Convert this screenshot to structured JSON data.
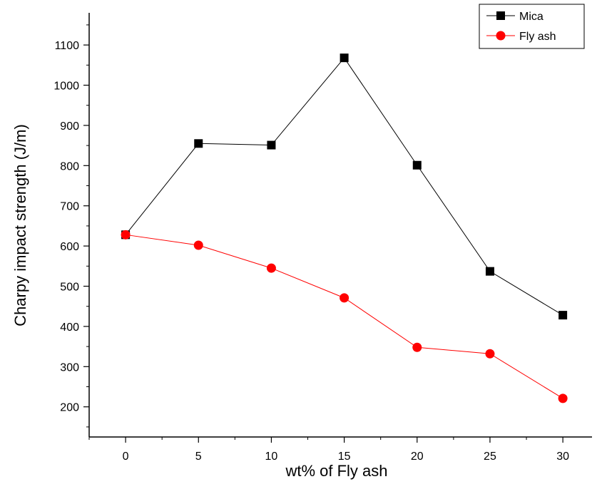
{
  "chart_data": {
    "type": "line",
    "title": "",
    "xlabel": "wt% of Fly ash",
    "ylabel": "Charpy impact strength (J/m)",
    "x": [
      0,
      5,
      10,
      15,
      20,
      25,
      30
    ],
    "xlim": [
      -2.5,
      32
    ],
    "ylim": [
      125,
      1180
    ],
    "xticks": [
      0,
      5,
      10,
      15,
      20,
      25,
      30
    ],
    "yticks": [
      200,
      300,
      400,
      500,
      600,
      700,
      800,
      900,
      1000,
      1100
    ],
    "grid": false,
    "legend_position": "top-right",
    "series": [
      {
        "name": "Mica",
        "color": "#000000",
        "marker": "square",
        "values": [
          628,
          855,
          851,
          1068,
          801,
          537,
          428
        ]
      },
      {
        "name": "Fly ash",
        "color": "#ff0000",
        "marker": "circle",
        "values": [
          628,
          602,
          545,
          471,
          348,
          332,
          221
        ]
      }
    ]
  }
}
